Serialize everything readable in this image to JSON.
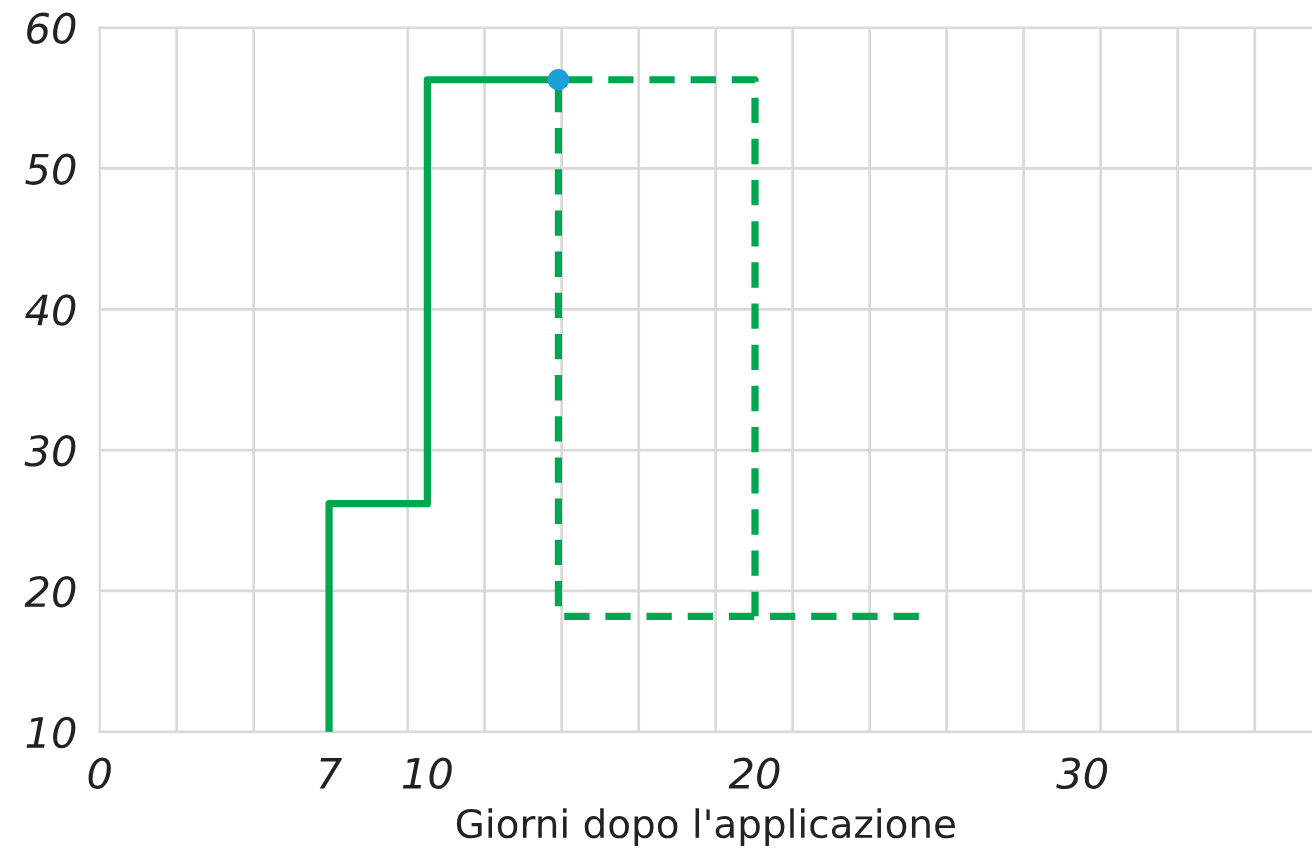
{
  "chart_data": {
    "type": "line",
    "xlabel": "Giorni dopo l'applicazione",
    "series": [
      {
        "color": "#00a650",
        "line_style": "solid",
        "x": [
          7,
          7,
          10,
          10,
          14
        ],
        "values": [
          10,
          26.2,
          26.2,
          56.3,
          56.3
        ]
      },
      {
        "color": "#00a650",
        "line_style": "dashed",
        "x": [
          25,
          14,
          14,
          20,
          20
        ],
        "values": [
          18.2,
          18.2,
          56.3,
          56.3,
          18.2
        ]
      },
      {
        "type": "scatter",
        "color": "#1aa0d8",
        "marker": "circle",
        "x": [
          14
        ],
        "values": [
          56.3
        ]
      }
    ],
    "xlim": [
      0,
      37
    ],
    "ylim": [
      10,
      60
    ],
    "xticks": [
      0,
      {
        "value": 2.35,
        "label": null
      },
      {
        "value": 4.7,
        "label": null
      },
      7,
      {
        "value": 9.4,
        "label": null
      },
      10,
      {
        "value": 11.75,
        "label": null
      },
      {
        "value": 14.1,
        "label": null
      },
      {
        "value": 16.45,
        "label": null
      },
      {
        "value": 18.8,
        "label": null
      },
      20,
      {
        "value": 21.15,
        "label": null
      },
      {
        "value": 23.5,
        "label": null
      },
      {
        "value": 25.85,
        "label": null
      },
      {
        "value": 28.2,
        "label": null
      },
      30,
      {
        "value": 30.55,
        "label": null
      },
      {
        "value": 32.9,
        "label": null
      },
      {
        "value": 35.25,
        "label": null
      }
    ],
    "yticks": [
      10,
      20,
      30,
      40,
      50,
      60
    ],
    "grid": true
  }
}
